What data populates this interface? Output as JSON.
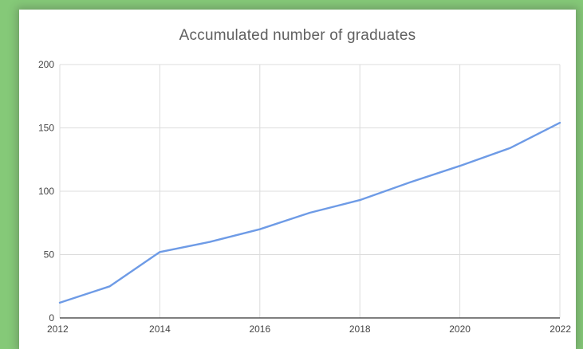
{
  "chart_data": {
    "type": "line",
    "title": "Accumulated number of graduates",
    "xlabel": "",
    "ylabel": "",
    "x": [
      2012,
      2013,
      2014,
      2015,
      2016,
      2017,
      2018,
      2019,
      2020,
      2021,
      2022
    ],
    "series": [
      {
        "values": [
          12,
          25,
          52,
          60,
          70,
          83,
          93,
          107,
          120,
          134,
          154
        ]
      }
    ],
    "xlim": [
      2012,
      2022
    ],
    "ylim": [
      0,
      200
    ],
    "x_ticks": [
      "2012",
      "2014",
      "2016",
      "2018",
      "2020",
      "2022"
    ],
    "y_ticks": [
      "0",
      "50",
      "100",
      "150",
      "200"
    ],
    "grid": true,
    "legend": "none",
    "line_color": "#6e9be6"
  }
}
